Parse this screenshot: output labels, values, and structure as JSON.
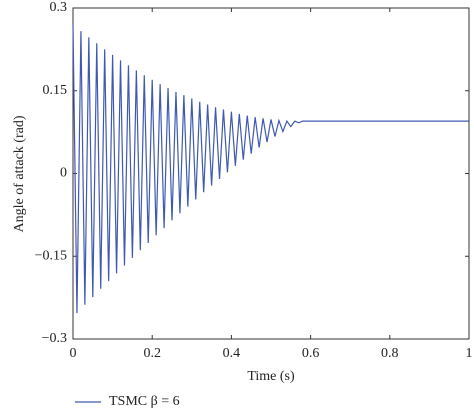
{
  "chart_data": {
    "type": "line",
    "x_label": "Time (s)",
    "y_label": "Angle of attack (rad)",
    "x": [
      0,
      0.01,
      0.02,
      0.03,
      0.04,
      0.05,
      0.06,
      0.07,
      0.08,
      0.09,
      0.1,
      0.11,
      0.12,
      0.13,
      0.14,
      0.15,
      0.16,
      0.17,
      0.18,
      0.19,
      0.2,
      0.21,
      0.22,
      0.23,
      0.24,
      0.25,
      0.26,
      0.27,
      0.28,
      0.29,
      0.3,
      0.31,
      0.32,
      0.33,
      0.34,
      0.35,
      0.36,
      0.37,
      0.38,
      0.39,
      0.4,
      0.41,
      0.42,
      0.43,
      0.44,
      0.45,
      0.46,
      0.47,
      0.48,
      0.49,
      0.5,
      0.51,
      0.52,
      0.53,
      0.54,
      0.55,
      0.56,
      0.57,
      0.58,
      1
    ],
    "series": [
      {
        "name": "TSMC β = 6",
        "color": "#4058b0",
        "values": [
          0.27,
          -0.253,
          0.258,
          -0.238,
          0.247,
          -0.224,
          0.236,
          -0.209,
          0.225,
          -0.195,
          0.215,
          -0.181,
          0.205,
          -0.167,
          0.196,
          -0.153,
          0.187,
          -0.139,
          0.178,
          -0.126,
          0.17,
          -0.112,
          0.162,
          -0.099,
          0.155,
          -0.085,
          0.148,
          -0.072,
          0.142,
          -0.06,
          0.136,
          -0.047,
          0.13,
          -0.034,
          0.125,
          -0.022,
          0.12,
          -0.01,
          0.116,
          0.002,
          0.112,
          0.014,
          0.108,
          0.025,
          0.105,
          0.036,
          0.102,
          0.047,
          0.1,
          0.057,
          0.098,
          0.067,
          0.096,
          0.076,
          0.095,
          0.085,
          0.095,
          0.092,
          0.095,
          0.095
        ]
      }
    ],
    "xlim": [
      0,
      1
    ],
    "xticks": [
      0,
      0.2,
      0.4,
      0.6,
      0.8,
      1
    ],
    "ylim": [
      -0.3,
      0.3
    ],
    "yticks": [
      {
        "value": -0.3,
        "label": "−0.3"
      },
      {
        "value": -0.15,
        "label": "−0.15"
      },
      0,
      0.15,
      0.3
    ],
    "legend": "bottom-left"
  }
}
